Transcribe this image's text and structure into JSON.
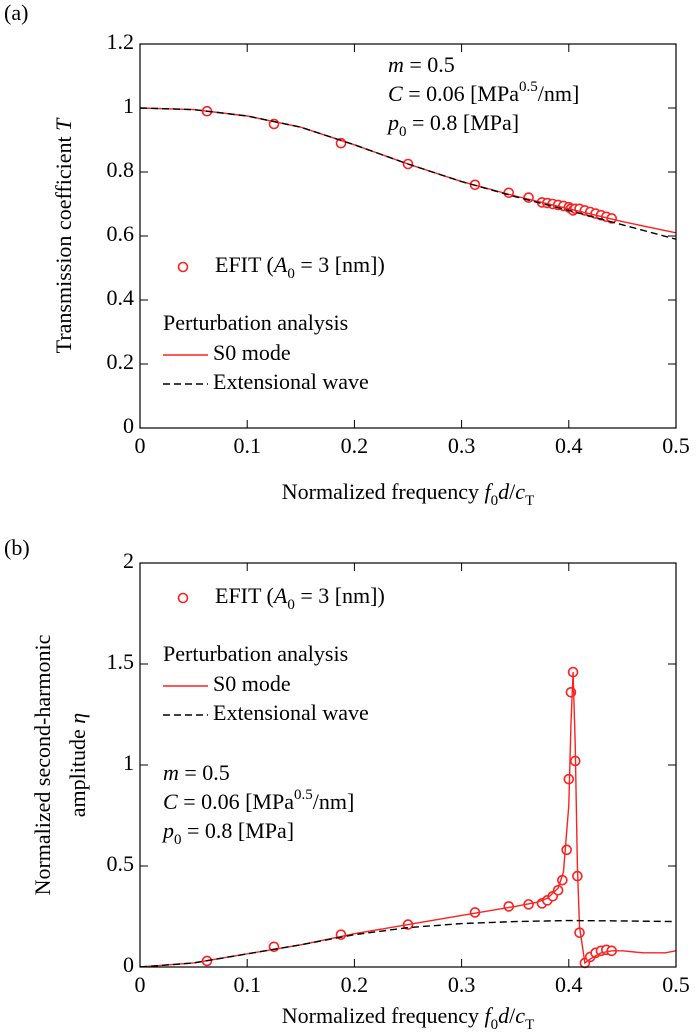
{
  "chart_data": [
    {
      "type": "line",
      "panel_label": "(a)",
      "x_label": "Normalized frequency f0d/cT",
      "y_label": [
        "Transmission coefficient T"
      ],
      "xlim": [
        0,
        0.5
      ],
      "xticks": [
        0,
        0.1,
        0.2,
        0.3,
        0.4,
        0.5
      ],
      "ylim": [
        0,
        1.2
      ],
      "yticks": [
        0,
        0.2,
        0.4,
        0.6,
        0.8,
        1,
        1.2
      ],
      "annotations": [
        "m = 0.5",
        "C = 0.06 [MPa0.5/nm]",
        "p0 = 0.8 [MPa]"
      ],
      "legend_title": "Perturbation analysis",
      "series": [
        {
          "name": "EFIT (A0 = 3 [nm])",
          "color": "#ff2020",
          "style": "markers",
          "x": [
            0.0625,
            0.125,
            0.1875,
            0.25,
            0.3125,
            0.344,
            0.3625,
            0.375,
            0.38,
            0.385,
            0.39,
            0.395,
            0.4,
            0.402,
            0.404,
            0.406,
            0.41,
            0.415,
            0.42,
            0.425,
            0.43,
            0.435,
            0.44
          ],
          "values": [
            0.99,
            0.95,
            0.89,
            0.825,
            0.76,
            0.735,
            0.72,
            0.705,
            0.703,
            0.7,
            0.697,
            0.694,
            0.69,
            0.685,
            0.68,
            0.685,
            0.685,
            0.68,
            0.675,
            0.67,
            0.665,
            0.66,
            0.655
          ]
        },
        {
          "name": "S0 mode",
          "color": "#ff2020",
          "style": "solid",
          "x": [
            0,
            0.05,
            0.1,
            0.15,
            0.2,
            0.25,
            0.3,
            0.35,
            0.4,
            0.45,
            0.5
          ],
          "values": [
            1.0,
            0.995,
            0.975,
            0.94,
            0.885,
            0.825,
            0.77,
            0.725,
            0.685,
            0.645,
            0.61
          ]
        },
        {
          "name": "Extensional wave",
          "color": "#000000",
          "style": "dashed",
          "x": [
            0,
            0.05,
            0.1,
            0.15,
            0.2,
            0.25,
            0.3,
            0.35,
            0.4,
            0.45,
            0.5
          ],
          "values": [
            1.0,
            0.995,
            0.975,
            0.94,
            0.885,
            0.825,
            0.77,
            0.723,
            0.68,
            0.635,
            0.59
          ]
        }
      ]
    },
    {
      "type": "line",
      "panel_label": "(b)",
      "x_label": "Normalized frequency f0d/cT",
      "y_label": [
        "Normalized second-harmonic",
        "amplitude η"
      ],
      "xlim": [
        0,
        0.5
      ],
      "xticks": [
        0,
        0.1,
        0.2,
        0.3,
        0.4,
        0.5
      ],
      "ylim": [
        0,
        2
      ],
      "yticks": [
        0,
        0.5,
        1,
        1.5,
        2
      ],
      "annotations": [
        "m = 0.5",
        "C = 0.06 [MPa0.5/nm]",
        "p0 = 0.8 [MPa]"
      ],
      "legend_title": "Perturbation analysis",
      "series": [
        {
          "name": "EFIT (A0 = 3 [nm])",
          "color": "#ff2020",
          "style": "markers",
          "x": [
            0.0625,
            0.125,
            0.1875,
            0.25,
            0.3125,
            0.344,
            0.3625,
            0.375,
            0.38,
            0.385,
            0.39,
            0.394,
            0.398,
            0.4,
            0.402,
            0.404,
            0.406,
            0.408,
            0.41,
            0.415,
            0.42,
            0.425,
            0.43,
            0.435,
            0.44
          ],
          "values": [
            0.03,
            0.1,
            0.16,
            0.21,
            0.27,
            0.3,
            0.31,
            0.315,
            0.33,
            0.35,
            0.38,
            0.43,
            0.58,
            0.93,
            1.36,
            1.46,
            1.02,
            0.45,
            0.17,
            0.02,
            0.05,
            0.07,
            0.08,
            0.085,
            0.08
          ]
        },
        {
          "name": "S0 mode",
          "color": "#ff2020",
          "style": "solid",
          "x": [
            0,
            0.05,
            0.1,
            0.15,
            0.2,
            0.25,
            0.3,
            0.35,
            0.37,
            0.38,
            0.39,
            0.395,
            0.4,
            0.402,
            0.404,
            0.406,
            0.408,
            0.41,
            0.415,
            0.42,
            0.43,
            0.44,
            0.45,
            0.47,
            0.49,
            0.5
          ],
          "values": [
            0,
            0.02,
            0.065,
            0.11,
            0.165,
            0.21,
            0.255,
            0.3,
            0.32,
            0.34,
            0.39,
            0.47,
            0.8,
            1.2,
            1.46,
            1.1,
            0.5,
            0.2,
            0.02,
            0.04,
            0.07,
            0.08,
            0.08,
            0.07,
            0.07,
            0.08
          ]
        },
        {
          "name": "Extensional wave",
          "color": "#000000",
          "style": "dashed",
          "x": [
            0,
            0.05,
            0.1,
            0.15,
            0.2,
            0.25,
            0.3,
            0.35,
            0.4,
            0.45,
            0.5
          ],
          "values": [
            0,
            0.02,
            0.065,
            0.11,
            0.16,
            0.195,
            0.215,
            0.225,
            0.23,
            0.228,
            0.225
          ]
        }
      ]
    }
  ]
}
